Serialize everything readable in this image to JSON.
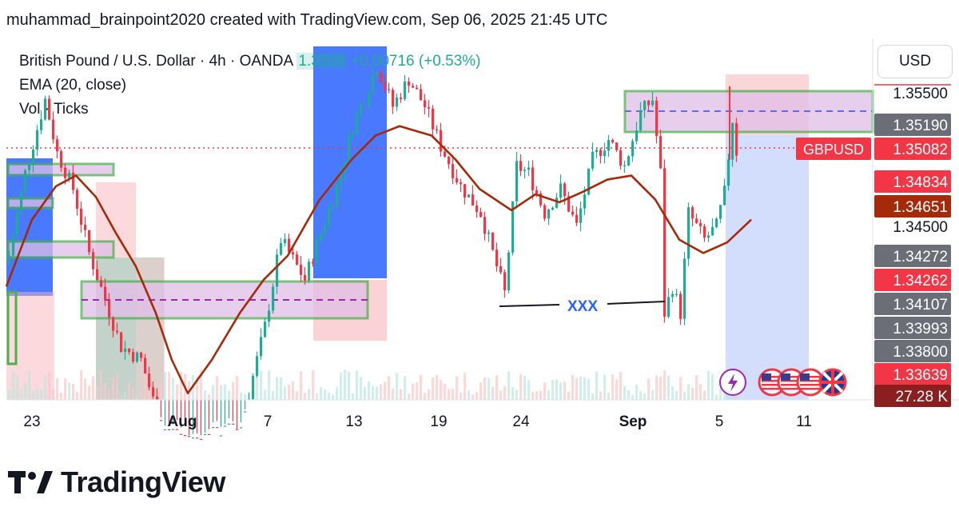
{
  "header": {
    "text": "muhammad_brainpoint2020 created with TradingView.com, Sep 06, 2025 21:45 UTC"
  },
  "legend": {
    "symbol": "British Pound / U.S. Dollar · 4h · OANDA",
    "last": "1.3508",
    "change": "+0.00716 (+0.53%)",
    "ema": "EMA (20, close)",
    "vol": "Vol · Ticks"
  },
  "currency_button": "USD",
  "annotation": "XXX",
  "brand": "TradingView",
  "colors": {
    "up": "#22ab94",
    "down": "#f23645",
    "ema": "#a52a0a",
    "zone_green": "#4caf50",
    "zone_fill": "#e1bee7",
    "blue_box": "#2962ff",
    "red_box": "#f8b4b9",
    "ticker_bg": "#f23645"
  },
  "price_labels": [
    {
      "text": "1.35500",
      "style": "plain"
    },
    {
      "text": "1.35190",
      "style": "gray"
    },
    {
      "text": "1.35082",
      "style": "red",
      "tag": "GBPUSD"
    },
    {
      "text": "1.34834",
      "style": "red"
    },
    {
      "text": "1.34651",
      "style": "brown"
    },
    {
      "text": "1.34500",
      "style": "plain"
    },
    {
      "text": "1.34272",
      "style": "gray"
    },
    {
      "text": "1.34262",
      "style": "red"
    },
    {
      "text": "1.34107",
      "style": "gray"
    },
    {
      "text": "1.33993",
      "style": "gray"
    },
    {
      "text": "1.33800",
      "style": "gray"
    },
    {
      "text": "1.33639",
      "style": "red"
    },
    {
      "text": "27.28 K",
      "style": "darkred"
    }
  ],
  "chart_data": {
    "type": "candlestick",
    "symbol": "British Pound / U.S. Dollar",
    "timeframe": "4h",
    "x_ticks": [
      "23",
      "Aug",
      "7",
      "13",
      "19",
      "24",
      "Sep",
      "5",
      "11"
    ],
    "y_ticks": [
      "1.35500",
      "1.35000",
      "1.34500"
    ],
    "ylim": [
      1.3325,
      1.3575
    ],
    "last_price": 1.35082,
    "indicators": [
      "EMA (20, close)",
      "Vol · Ticks"
    ],
    "series": [
      {
        "name": "EMA (20, close)",
        "values": [
          1.3405,
          1.3455,
          1.348,
          1.3488,
          1.3472,
          1.3445,
          1.342,
          1.3385,
          1.335,
          1.3325,
          1.335,
          1.3385,
          1.341,
          1.3428,
          1.347,
          1.35,
          1.3518,
          1.3525,
          1.3518,
          1.35,
          1.3478,
          1.3462,
          1.3474,
          1.3468,
          1.3476,
          1.3485,
          1.3488,
          1.347,
          1.344,
          1.343,
          1.3438,
          1.3455
        ]
      }
    ]
  }
}
